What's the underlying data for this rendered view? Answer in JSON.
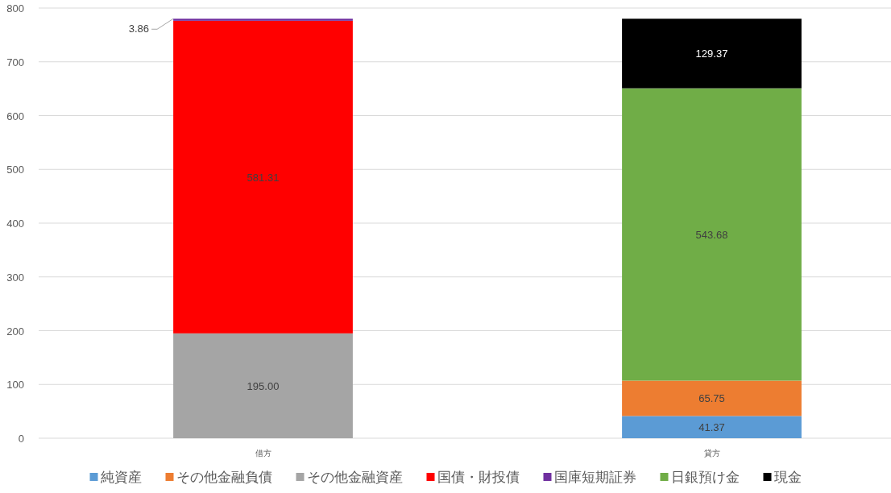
{
  "chart_data": {
    "type": "bar",
    "stacked": true,
    "categories": [
      "借方",
      "貸方"
    ],
    "series": [
      {
        "name": "純資産",
        "color": "#5b9bd5",
        "values": [
          null,
          41.37
        ],
        "value_labels": [
          null,
          "41.37"
        ]
      },
      {
        "name": "その他金融負債",
        "color": "#ed7d31",
        "values": [
          null,
          65.75
        ],
        "value_labels": [
          null,
          "65.75"
        ]
      },
      {
        "name": "その他金融資産",
        "color": "#a5a5a5",
        "values": [
          195.0,
          null
        ],
        "value_labels": [
          "195.00",
          null
        ]
      },
      {
        "name": "国債・財投債",
        "color": "#ff0000",
        "values": [
          581.31,
          null
        ],
        "value_labels": [
          "581.31",
          null
        ]
      },
      {
        "name": "国庫短期証券",
        "color": "#7030a0",
        "values": [
          3.86,
          null
        ],
        "value_labels": [
          "3.86",
          null
        ]
      },
      {
        "name": "日銀預け金",
        "color": "#70ad47",
        "values": [
          null,
          543.68
        ],
        "value_labels": [
          null,
          "543.68"
        ]
      },
      {
        "name": "現金",
        "color": "#000000",
        "values": [
          null,
          129.37
        ],
        "value_labels": [
          null,
          "129.37"
        ]
      }
    ],
    "ylim": [
      0,
      800
    ],
    "yticks": [
      0,
      100,
      200,
      300,
      400,
      500,
      600,
      700,
      800
    ],
    "grid": "y",
    "legend": "bottom"
  }
}
